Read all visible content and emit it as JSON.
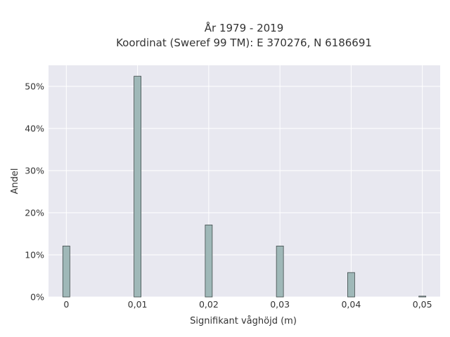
{
  "chart_data": {
    "type": "bar",
    "title_line1": "År 1979 - 2019",
    "title_line2": "Koordinat (Sweref 99 TM): E 370276, N 6186691",
    "xlabel": "Signifikant våghöjd (m)",
    "ylabel": "Andel",
    "x": [
      0,
      0.01,
      0.02,
      0.03,
      0.04,
      0.05
    ],
    "values": [
      0.121,
      0.524,
      0.171,
      0.121,
      0.058,
      0.002
    ],
    "xlim": [
      -0.0025,
      0.0525
    ],
    "ylim": [
      0,
      0.55
    ],
    "x_ticks": [
      0,
      0.01,
      0.02,
      0.03,
      0.04,
      0.05
    ],
    "x_tick_labels": [
      "0",
      "0,01",
      "0,02",
      "0,03",
      "0,04",
      "0,05"
    ],
    "y_ticks": [
      0,
      0.1,
      0.2,
      0.3,
      0.4,
      0.5
    ],
    "y_tick_labels": [
      "0%",
      "10%",
      "20%",
      "30%",
      "40%",
      "50%"
    ],
    "grid": true,
    "legend": "none",
    "colors": {
      "plot_background": "#e8e8f0",
      "grid": "#ffffff",
      "bar_fill": "#9fb8b8",
      "bar_stroke": "#3f4a4a",
      "text": "#333333"
    }
  }
}
